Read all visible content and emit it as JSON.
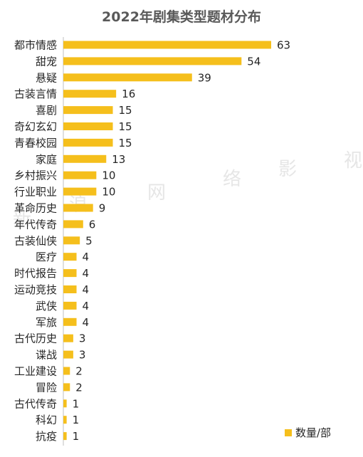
{
  "chart_data": {
    "type": "bar",
    "orientation": "horizontal",
    "title": "2022年剧集类型题材分布",
    "categories": [
      "都市情感",
      "甜宠",
      "悬疑",
      "古装言情",
      "喜剧",
      "奇幻玄幻",
      "青春校园",
      "家庭",
      "乡村振兴",
      "行业职业",
      "革命历史",
      "年代传奇",
      "古装仙侠",
      "医疗",
      "时代报告",
      "运动竞技",
      "武侠",
      "军旅",
      "古代历史",
      "谍战",
      "工业建设",
      "冒险",
      "古代传奇",
      "科幻",
      "抗疫"
    ],
    "series": [
      {
        "name": "数量/部",
        "values": [
          63,
          54,
          39,
          16,
          15,
          15,
          15,
          13,
          10,
          10,
          9,
          6,
          5,
          4,
          4,
          4,
          4,
          4,
          3,
          3,
          2,
          2,
          1,
          1,
          1
        ]
      }
    ],
    "xlim": [
      0,
      63
    ],
    "grid": false,
    "legend_position": "bottom-right",
    "colors": {
      "bar": "#F5BF1C",
      "axis": "#BFBFBF",
      "title": "#595959",
      "label": "#262626",
      "value": "#262626"
    }
  },
  "watermark": "新 浪 网 络 影 视"
}
